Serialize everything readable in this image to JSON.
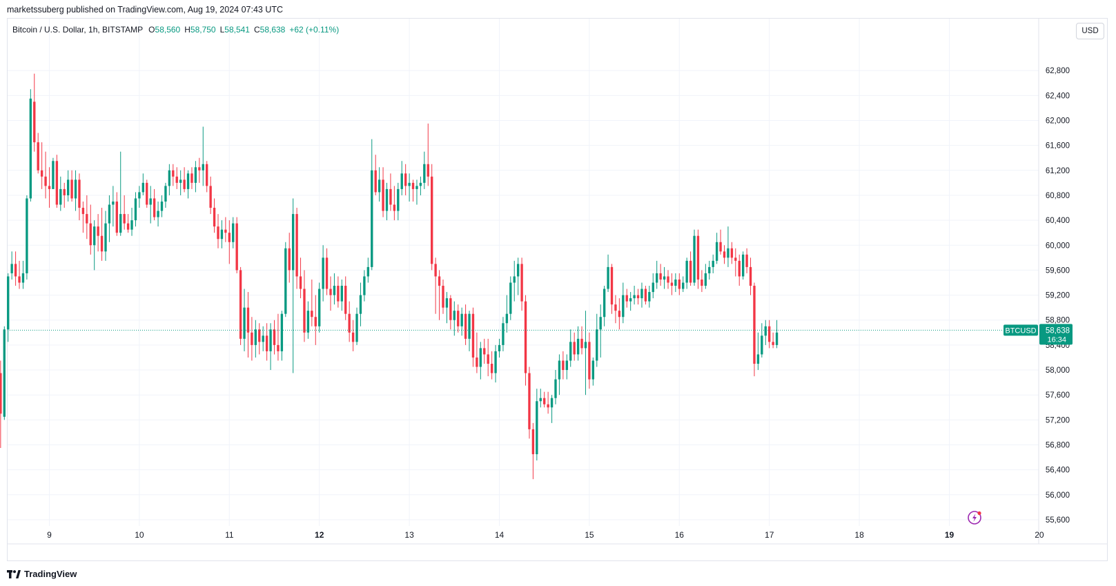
{
  "header": {
    "publisher": "marketssuberg published on TradingView.com, Aug 19, 2024 07:43 UTC"
  },
  "legend": {
    "symbol": "Bitcoin / U.S. Dollar, 1h, BITSTAMP",
    "open_key": "O",
    "open": "58,560",
    "high_key": "H",
    "high": "58,750",
    "low_key": "L",
    "low": "58,541",
    "close_key": "C",
    "close": "58,638",
    "change": "+62 (+0.11%)"
  },
  "currency_button": "USD",
  "price_tag": {
    "symbol": "BTCUSD",
    "price": "58,638",
    "countdown": "16:34"
  },
  "footer": {
    "brand": "TradingView"
  },
  "colors": {
    "up": "#089981",
    "down": "#f23645",
    "grid": "#f0f3fa",
    "tag": "#089981"
  },
  "chart_data": {
    "type": "candlestick",
    "title": "Bitcoin / U.S. Dollar, 1h, BITSTAMP",
    "ylim": [
      55500,
      63300
    ],
    "y_ticks": [
      55600,
      56000,
      56400,
      56800,
      57200,
      57600,
      58000,
      58400,
      58800,
      59200,
      59600,
      60000,
      60400,
      60800,
      61200,
      61600,
      62000,
      62400,
      62800
    ],
    "y_tick_labels": [
      "55,600",
      "56,000",
      "56,400",
      "56,800",
      "57,200",
      "57,600",
      "58,000",
      "58,400",
      "58,800",
      "59,200",
      "59,600",
      "60,000",
      "60,400",
      "60,800",
      "61,200",
      "61,600",
      "62,000",
      "62,400",
      "62,800"
    ],
    "x_ticks": [
      {
        "label": "9",
        "day": 9,
        "bold": false
      },
      {
        "label": "10",
        "day": 10,
        "bold": false
      },
      {
        "label": "11",
        "day": 11,
        "bold": false
      },
      {
        "label": "12",
        "day": 12,
        "bold": true
      },
      {
        "label": "13",
        "day": 13,
        "bold": false
      },
      {
        "label": "14",
        "day": 14,
        "bold": false
      },
      {
        "label": "15",
        "day": 15,
        "bold": false
      },
      {
        "label": "16",
        "day": 16,
        "bold": false
      },
      {
        "label": "17",
        "day": 17,
        "bold": false
      },
      {
        "label": "18",
        "day": 18,
        "bold": false
      },
      {
        "label": "19",
        "day": 19,
        "bold": true
      },
      {
        "label": "20",
        "day": 20,
        "bold": false
      }
    ],
    "last_price": 58638,
    "start": {
      "day": 8,
      "hour": 11
    },
    "bar_interval_hours": 1,
    "candles_ohlc": [
      [
        57950,
        58150,
        56750,
        57300
      ],
      [
        57250,
        58700,
        57200,
        58650
      ],
      [
        58650,
        59550,
        58450,
        59500
      ],
      [
        59550,
        59900,
        59450,
        59700
      ],
      [
        59700,
        59900,
        59350,
        59500
      ],
      [
        59500,
        59750,
        59300,
        59400
      ],
      [
        59400,
        59750,
        59300,
        59550
      ],
      [
        59550,
        60800,
        59450,
        60750
      ],
      [
        60750,
        62500,
        60700,
        62350
      ],
      [
        62300,
        62750,
        61500,
        61650
      ],
      [
        61650,
        61800,
        61150,
        61200
      ],
      [
        61200,
        61650,
        60900,
        61100
      ],
      [
        61100,
        61500,
        60750,
        60950
      ],
      [
        60950,
        61250,
        60600,
        60900
      ],
      [
        60900,
        61400,
        60900,
        61350
      ],
      [
        61350,
        61450,
        60600,
        60650
      ],
      [
        60650,
        61100,
        60550,
        60900
      ],
      [
        60900,
        61000,
        60600,
        60800
      ],
      [
        60800,
        61200,
        60700,
        61050
      ],
      [
        61050,
        61200,
        60700,
        60750
      ],
      [
        60750,
        61200,
        60550,
        61050
      ],
      [
        61050,
        61150,
        60400,
        60600
      ],
      [
        60600,
        60700,
        60200,
        60500
      ],
      [
        60500,
        60800,
        60100,
        60350
      ],
      [
        60350,
        60650,
        59850,
        60000
      ],
      [
        60000,
        60400,
        59600,
        60300
      ],
      [
        60300,
        60500,
        59900,
        60150
      ],
      [
        60150,
        60600,
        59750,
        59900
      ],
      [
        59900,
        60550,
        59750,
        60350
      ],
      [
        60350,
        60800,
        60050,
        60650
      ],
      [
        60650,
        60950,
        60300,
        60700
      ],
      [
        60700,
        60850,
        60150,
        60200
      ],
      [
        60200,
        61500,
        60150,
        60500
      ],
      [
        60500,
        60800,
        60250,
        60350
      ],
      [
        60350,
        60500,
        60200,
        60250
      ],
      [
        60250,
        60600,
        60150,
        60400
      ],
      [
        60400,
        60850,
        60300,
        60750
      ],
      [
        60750,
        60950,
        60600,
        60850
      ],
      [
        60850,
        61150,
        60800,
        61000
      ],
      [
        61000,
        61050,
        60600,
        60650
      ],
      [
        60650,
        60950,
        60350,
        60750
      ],
      [
        60750,
        60900,
        60400,
        60450
      ],
      [
        60450,
        60700,
        60300,
        60550
      ],
      [
        60550,
        60800,
        60450,
        60700
      ],
      [
        60700,
        61000,
        60600,
        60950
      ],
      [
        60950,
        61300,
        60800,
        61200
      ],
      [
        61200,
        61300,
        60950,
        61100
      ],
      [
        61100,
        61250,
        60900,
        61000
      ],
      [
        61000,
        61200,
        60800,
        61050
      ],
      [
        61050,
        61250,
        60850,
        60900
      ],
      [
        60900,
        61200,
        60750,
        61150
      ],
      [
        61150,
        61250,
        60900,
        61000
      ],
      [
        61000,
        61350,
        60850,
        61250
      ],
      [
        61250,
        61400,
        61000,
        61200
      ],
      [
        61200,
        61900,
        60950,
        61300
      ],
      [
        61300,
        61350,
        60850,
        60950
      ],
      [
        60950,
        61100,
        60500,
        60600
      ],
      [
        60600,
        60750,
        60200,
        60300
      ],
      [
        60300,
        60500,
        59950,
        60100
      ],
      [
        60100,
        60400,
        59950,
        60250
      ],
      [
        60250,
        60450,
        60050,
        60200
      ],
      [
        60200,
        60400,
        59700,
        60050
      ],
      [
        60050,
        60450,
        59950,
        60350
      ],
      [
        60350,
        60450,
        59550,
        59600
      ],
      [
        59600,
        59650,
        58400,
        58500
      ],
      [
        58500,
        59300,
        58300,
        59000
      ],
      [
        59000,
        59250,
        58200,
        58600
      ],
      [
        58600,
        58850,
        58150,
        58400
      ],
      [
        58400,
        58800,
        58200,
        58650
      ],
      [
        58650,
        58750,
        58250,
        58450
      ],
      [
        58450,
        58700,
        58300,
        58550
      ],
      [
        58550,
        58750,
        58150,
        58300
      ],
      [
        58300,
        58750,
        58000,
        58650
      ],
      [
        58650,
        58800,
        58250,
        58400
      ],
      [
        58400,
        58900,
        58150,
        58300
      ],
      [
        58300,
        58950,
        58150,
        58900
      ],
      [
        58900,
        60050,
        58850,
        59950
      ],
      [
        59950,
        60200,
        59400,
        59600
      ],
      [
        59600,
        60750,
        57950,
        60500
      ],
      [
        60500,
        60600,
        59300,
        59500
      ],
      [
        59500,
        59800,
        59150,
        59300
      ],
      [
        59300,
        59600,
        58450,
        58600
      ],
      [
        58600,
        59100,
        58500,
        58950
      ],
      [
        58950,
        59450,
        58700,
        58850
      ],
      [
        58850,
        59200,
        58400,
        58700
      ],
      [
        58700,
        59400,
        58600,
        59300
      ],
      [
        59300,
        60000,
        59100,
        59800
      ],
      [
        59800,
        59950,
        59200,
        59300
      ],
      [
        59300,
        59500,
        58950,
        59200
      ],
      [
        59200,
        59550,
        59050,
        59350
      ],
      [
        59350,
        59500,
        59000,
        59100
      ],
      [
        59100,
        59450,
        58950,
        59350
      ],
      [
        59350,
        59500,
        58800,
        58900
      ],
      [
        58900,
        59100,
        58450,
        58600
      ],
      [
        58600,
        58800,
        58300,
        58450
      ],
      [
        58450,
        59000,
        58400,
        58900
      ],
      [
        58900,
        59400,
        58700,
        59200
      ],
      [
        59200,
        59600,
        59100,
        59500
      ],
      [
        59500,
        59800,
        59400,
        59650
      ],
      [
        59650,
        61700,
        59600,
        61200
      ],
      [
        61200,
        61450,
        60800,
        60850
      ],
      [
        60850,
        61250,
        60700,
        61050
      ],
      [
        61050,
        61250,
        60450,
        60550
      ],
      [
        60550,
        61000,
        60400,
        60900
      ],
      [
        60900,
        61150,
        60550,
        60650
      ],
      [
        60650,
        60950,
        60400,
        60550
      ],
      [
        60550,
        61000,
        60400,
        60900
      ],
      [
        60900,
        61350,
        60800,
        61150
      ],
      [
        61150,
        61300,
        60800,
        60950
      ],
      [
        60950,
        61150,
        60700,
        61000
      ],
      [
        61000,
        61050,
        60700,
        60900
      ],
      [
        60900,
        61050,
        60650,
        60950
      ],
      [
        60950,
        61100,
        60800,
        61000
      ],
      [
        61000,
        61500,
        60900,
        61300
      ],
      [
        61300,
        61950,
        60950,
        61100
      ],
      [
        61100,
        61300,
        59600,
        59700
      ],
      [
        59700,
        59800,
        58900,
        59500
      ],
      [
        59500,
        59600,
        58800,
        59350
      ],
      [
        59350,
        59450,
        58900,
        59000
      ],
      [
        59000,
        59250,
        58750,
        59150
      ],
      [
        59150,
        59200,
        58650,
        58800
      ],
      [
        58800,
        59100,
        58550,
        58950
      ],
      [
        58950,
        59050,
        58600,
        58700
      ],
      [
        58700,
        59000,
        58550,
        58900
      ],
      [
        58900,
        59050,
        58400,
        58500
      ],
      [
        58500,
        58950,
        58300,
        58900
      ],
      [
        58900,
        59000,
        58050,
        58200
      ],
      [
        58200,
        58600,
        57950,
        58050
      ],
      [
        58050,
        58450,
        57850,
        58350
      ],
      [
        58350,
        58500,
        58100,
        58250
      ],
      [
        58250,
        58500,
        57900,
        58100
      ],
      [
        58100,
        58300,
        57850,
        57950
      ],
      [
        57950,
        58400,
        57800,
        58300
      ],
      [
        58300,
        58500,
        58200,
        58400
      ],
      [
        58400,
        58850,
        58300,
        58750
      ],
      [
        58750,
        59200,
        58600,
        58900
      ],
      [
        58900,
        59500,
        58800,
        59400
      ],
      [
        59400,
        59750,
        59100,
        59500
      ],
      [
        59500,
        59800,
        59200,
        59700
      ],
      [
        59700,
        59800,
        58950,
        59100
      ],
      [
        59100,
        59200,
        57750,
        57950
      ],
      [
        57950,
        58050,
        56900,
        57050
      ],
      [
        57050,
        57150,
        56250,
        56650
      ],
      [
        56650,
        57700,
        56550,
        57500
      ],
      [
        57500,
        57700,
        57400,
        57550
      ],
      [
        57550,
        57650,
        57400,
        57450
      ],
      [
        57450,
        57650,
        57300,
        57400
      ],
      [
        57400,
        57600,
        57150,
        57550
      ],
      [
        57550,
        58000,
        57450,
        57850
      ],
      [
        57850,
        58250,
        57600,
        58150
      ],
      [
        58150,
        58300,
        57850,
        58000
      ],
      [
        58000,
        58250,
        57850,
        58150
      ],
      [
        58150,
        58650,
        58050,
        58450
      ],
      [
        58450,
        58600,
        58150,
        58250
      ],
      [
        58250,
        58700,
        58150,
        58500
      ],
      [
        58500,
        58700,
        58250,
        58350
      ],
      [
        58350,
        58950,
        57600,
        58450
      ],
      [
        58450,
        58600,
        57700,
        57850
      ],
      [
        57850,
        58200,
        57750,
        58150
      ],
      [
        58150,
        58900,
        58050,
        58650
      ],
      [
        58650,
        59050,
        58200,
        58850
      ],
      [
        58850,
        59350,
        58700,
        59300
      ],
      [
        59300,
        59850,
        59250,
        59650
      ],
      [
        59650,
        59700,
        58900,
        59050
      ],
      [
        59050,
        59200,
        58750,
        58950
      ],
      [
        58950,
        59150,
        58650,
        58850
      ],
      [
        58850,
        59400,
        58750,
        59200
      ],
      [
        59200,
        59300,
        59000,
        59100
      ],
      [
        59100,
        59250,
        58950,
        59150
      ],
      [
        59150,
        59350,
        59050,
        59200
      ],
      [
        59200,
        59300,
        59050,
        59150
      ],
      [
        59150,
        59400,
        59000,
        59300
      ],
      [
        59300,
        59350,
        59050,
        59100
      ],
      [
        59100,
        59350,
        59000,
        59250
      ],
      [
        59250,
        59550,
        59150,
        59400
      ],
      [
        59400,
        59750,
        59300,
        59550
      ],
      [
        59550,
        59700,
        59350,
        59450
      ],
      [
        59450,
        59650,
        59300,
        59500
      ],
      [
        59500,
        59600,
        59300,
        59400
      ],
      [
        59400,
        59550,
        59200,
        59350
      ],
      [
        59350,
        59550,
        59250,
        59450
      ],
      [
        59450,
        59550,
        59200,
        59300
      ],
      [
        59300,
        59500,
        59250,
        59400
      ],
      [
        59400,
        59800,
        59300,
        59750
      ],
      [
        59750,
        59900,
        59350,
        59400
      ],
      [
        59400,
        60250,
        59350,
        60150
      ],
      [
        60150,
        60250,
        59300,
        59450
      ],
      [
        59450,
        59600,
        59250,
        59350
      ],
      [
        59350,
        59700,
        59300,
        59550
      ],
      [
        59550,
        59750,
        59450,
        59650
      ],
      [
        59650,
        59850,
        59550,
        59750
      ],
      [
        59750,
        60200,
        59700,
        60050
      ],
      [
        60050,
        60250,
        59850,
        59900
      ],
      [
        59900,
        60000,
        59700,
        59800
      ],
      [
        59800,
        60300,
        59650,
        59950
      ],
      [
        59950,
        60050,
        59700,
        59800
      ],
      [
        59800,
        59950,
        59500,
        59750
      ],
      [
        59750,
        59850,
        59350,
        59500
      ],
      [
        59500,
        59900,
        59450,
        59850
      ],
      [
        59850,
        59950,
        59550,
        59650
      ],
      [
        59650,
        59800,
        59200,
        59350
      ],
      [
        59350,
        59400,
        57900,
        58100
      ],
      [
        58100,
        58600,
        58000,
        58250
      ],
      [
        58250,
        58750,
        58200,
        58550
      ],
      [
        58550,
        58800,
        58400,
        58700
      ],
      [
        58700,
        58800,
        58350,
        58450
      ],
      [
        58450,
        58600,
        58350,
        58400
      ],
      [
        58400,
        58800,
        58350,
        58600
      ]
    ]
  }
}
